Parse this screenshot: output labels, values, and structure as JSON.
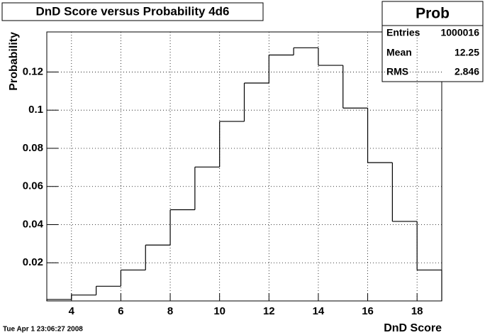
{
  "chart_data": {
    "type": "histogram",
    "title": "DnD Score versus Probability 4d6",
    "x_label": "DnD Score",
    "y_label": "Probability",
    "bins": [
      3,
      4,
      5,
      6,
      7,
      8,
      9,
      10,
      11,
      12,
      13,
      14,
      15,
      16,
      17,
      18,
      19
    ],
    "values": [
      0.00077,
      0.0031,
      0.0077,
      0.0162,
      0.0293,
      0.0478,
      0.0702,
      0.0941,
      0.1142,
      0.1289,
      0.1327,
      0.1235,
      0.1011,
      0.0725,
      0.0417,
      0.0162
    ],
    "xlim": [
      3,
      19
    ],
    "ylim": [
      0,
      0.141
    ],
    "xticks": [
      4,
      6,
      8,
      10,
      12,
      14,
      16,
      18
    ],
    "yticks": [
      0.02,
      0.04,
      0.06,
      0.08,
      0.1,
      0.12
    ],
    "grid": true,
    "color": "#000000",
    "stats": {
      "name": "Prob",
      "entries_label": "Entries",
      "entries": 1000016,
      "mean_label": "Mean",
      "mean": 12.25,
      "rms_label": "RMS",
      "rms": 2.846
    },
    "timestamp": "Tue Apr  1 23:06:27 2008"
  }
}
